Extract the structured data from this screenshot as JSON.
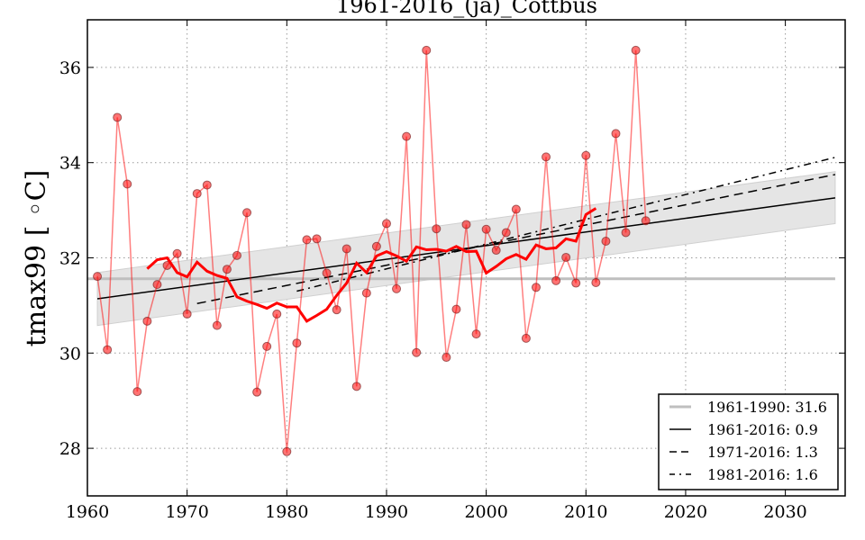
{
  "chart_data": {
    "type": "line",
    "title": "1961-2016_(ja)_Cottbus",
    "xlabel": "",
    "ylabel": "tmax99 [ ◦C]",
    "xlim": [
      1960,
      2036
    ],
    "ylim": [
      27,
      37
    ],
    "grid": true,
    "x_ticks": [
      1960,
      1970,
      1980,
      1990,
      2000,
      2010,
      2020,
      2030
    ],
    "x_tick_labels": [
      "1960",
      "1970",
      "1980",
      "1990",
      "2000",
      "2010",
      "2020",
      "2030"
    ],
    "y_ticks": [
      28,
      30,
      32,
      34,
      36
    ],
    "y_tick_labels": [
      "28",
      "30",
      "32",
      "34",
      "36"
    ],
    "legend_position": "lower-right",
    "colors": {
      "observed": "#ff0000",
      "smoothed": "#ff0000",
      "reference": "#bfbfbf",
      "trend": "#000000",
      "band": "#e5e5e5"
    },
    "series": [
      {
        "name": "tmax99",
        "kind": "points",
        "x": [
          1961,
          1962,
          1963,
          1964,
          1965,
          1966,
          1967,
          1968,
          1969,
          1970,
          1971,
          1972,
          1973,
          1974,
          1975,
          1976,
          1977,
          1978,
          1979,
          1980,
          1981,
          1982,
          1983,
          1984,
          1985,
          1986,
          1987,
          1988,
          1989,
          1990,
          1991,
          1992,
          1993,
          1994,
          1995,
          1996,
          1997,
          1998,
          1999,
          2000,
          2001,
          2002,
          2003,
          2004,
          2005,
          2006,
          2007,
          2008,
          2009,
          2010,
          2011,
          2012,
          2013,
          2014,
          2015,
          2016
        ],
        "values": [
          31.61,
          30.07,
          34.95,
          33.55,
          29.19,
          30.67,
          31.44,
          31.84,
          32.09,
          30.82,
          33.35,
          33.53,
          30.58,
          31.76,
          32.05,
          32.95,
          29.18,
          30.14,
          30.82,
          27.93,
          30.21,
          32.38,
          32.4,
          31.68,
          30.91,
          32.19,
          29.3,
          31.26,
          32.24,
          32.72,
          31.35,
          34.55,
          30.01,
          36.36,
          32.61,
          29.91,
          30.92,
          32.7,
          30.4,
          32.6,
          32.16,
          32.53,
          33.02,
          30.31,
          31.38,
          34.12,
          31.52,
          32.01,
          31.47,
          34.15,
          31.48,
          32.35,
          34.61,
          32.53,
          36.36,
          32.78
        ]
      },
      {
        "name": "moving-average",
        "kind": "smoothed",
        "x": [
          1966,
          1967,
          1968,
          1969,
          1970,
          1971,
          1972,
          1973,
          1974,
          1975,
          1976,
          1977,
          1978,
          1979,
          1980,
          1981,
          1982,
          1983,
          1984,
          1985,
          1986,
          1987,
          1988,
          1989,
          1990,
          1991,
          1992,
          1993,
          1994,
          1995,
          1996,
          1997,
          1998,
          1999,
          2000,
          2001,
          2002,
          2003,
          2004,
          2005,
          2006,
          2007,
          2008,
          2009,
          2010,
          2011
        ],
        "values": [
          31.77,
          31.96,
          32.0,
          31.69,
          31.6,
          31.91,
          31.72,
          31.63,
          31.57,
          31.18,
          31.09,
          31.02,
          30.94,
          31.05,
          30.97,
          30.97,
          30.67,
          30.79,
          30.92,
          31.21,
          31.47,
          31.89,
          31.69,
          32.04,
          32.13,
          32.04,
          31.93,
          32.23,
          32.17,
          32.18,
          32.14,
          32.24,
          32.13,
          32.14,
          31.68,
          31.82,
          31.98,
          32.07,
          31.97,
          32.27,
          32.19,
          32.21,
          32.4,
          32.35,
          32.91,
          33.04
        ]
      },
      {
        "name": "1961-1990: 31.6",
        "kind": "reference",
        "x": [
          1960,
          2035
        ],
        "values": [
          31.56,
          31.56
        ]
      },
      {
        "name": "1961-2016: 0.9",
        "kind": "trend-solid",
        "x": [
          1961,
          2035
        ],
        "values": [
          31.14,
          33.26
        ],
        "band_upper": [
          31.69,
          33.81
        ],
        "band_lower": [
          30.58,
          32.72
        ]
      },
      {
        "name": "1971-2016: 1.3",
        "kind": "trend-dashed",
        "x": [
          1971,
          2035
        ],
        "values": [
          31.04,
          33.75
        ]
      },
      {
        "name": "1981-2016: 1.6",
        "kind": "trend-dashdot",
        "x": [
          1981,
          2035
        ],
        "values": [
          31.3,
          34.11
        ]
      }
    ],
    "legend": [
      {
        "label": "1961-1990: 31.6",
        "style": "reference"
      },
      {
        "label": "1961-2016: 0.9",
        "style": "solid"
      },
      {
        "label": "1971-2016: 1.3",
        "style": "dashed"
      },
      {
        "label": "1981-2016: 1.6",
        "style": "dashdot"
      }
    ]
  }
}
